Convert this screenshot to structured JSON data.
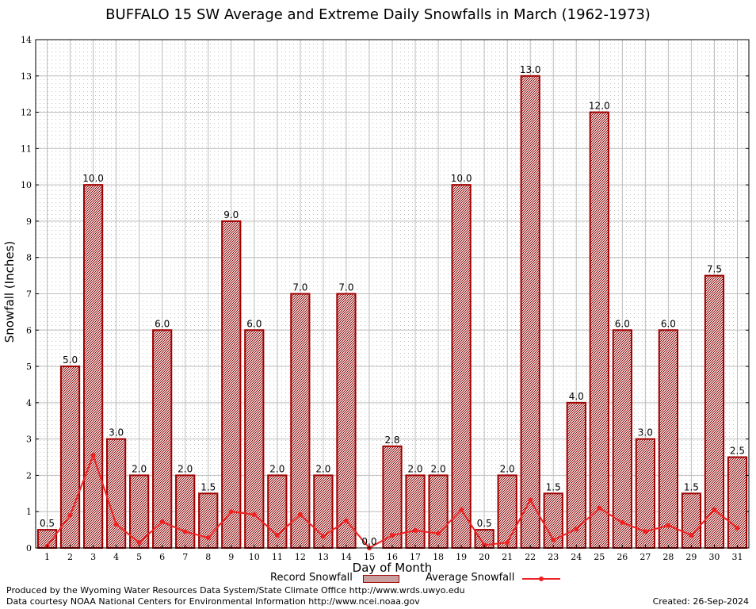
{
  "chart_data": {
    "type": "bar",
    "title": "BUFFALO 15 SW Average and Extreme Daily Snowfalls in March (1962-1973)",
    "xlabel": "Day of Month",
    "ylabel": "Snowfall (Inches)",
    "ylim": [
      0,
      14
    ],
    "yticks": [
      "0",
      "1",
      "2",
      "3",
      "4",
      "5",
      "6",
      "7",
      "8",
      "9",
      "10",
      "11",
      "12",
      "13",
      "14"
    ],
    "grid": true,
    "legend_position": "bottom",
    "categories": [
      "1",
      "2",
      "3",
      "4",
      "5",
      "6",
      "7",
      "8",
      "9",
      "10",
      "11",
      "12",
      "13",
      "14",
      "15",
      "16",
      "17",
      "18",
      "19",
      "20",
      "21",
      "22",
      "23",
      "24",
      "25",
      "26",
      "27",
      "28",
      "29",
      "30",
      "31"
    ],
    "series": [
      {
        "name": "Record Snowfall",
        "kind": "bar",
        "color": "#a00000",
        "values": [
          0.5,
          5.0,
          10.0,
          3.0,
          2.0,
          6.0,
          2.0,
          1.5,
          9.0,
          6.0,
          2.0,
          7.0,
          2.0,
          7.0,
          0.0,
          2.8,
          2.0,
          2.0,
          10.0,
          0.5,
          2.0,
          13.0,
          1.5,
          4.0,
          12.0,
          6.0,
          3.0,
          6.0,
          1.5,
          7.5,
          2.5
        ],
        "labels": [
          "0.5",
          "5.0",
          "10.0",
          "3.0",
          "2.0",
          "6.0",
          "2.0",
          "1.5",
          "9.0",
          "6.0",
          "2.0",
          "7.0",
          "2.0",
          "7.0",
          "0.0",
          "2.8",
          "2.0",
          "2.0",
          "10.0",
          "0.5",
          "2.0",
          "13.0",
          "1.5",
          "4.0",
          "12.0",
          "6.0",
          "3.0",
          "6.0",
          "1.5",
          "7.5",
          "2.5"
        ]
      },
      {
        "name": "Average Snowfall",
        "kind": "line",
        "color": "#ee2222",
        "values": [
          0.05,
          0.9,
          2.55,
          0.65,
          0.15,
          0.72,
          0.45,
          0.28,
          1.0,
          0.92,
          0.35,
          0.92,
          0.32,
          0.75,
          0.0,
          0.35,
          0.48,
          0.4,
          1.05,
          0.08,
          0.15,
          1.32,
          0.22,
          0.52,
          1.1,
          0.7,
          0.45,
          0.62,
          0.35,
          1.05,
          0.55
        ]
      }
    ]
  },
  "footer": {
    "produced": "Produced by the Wyoming Water Resources Data System/State Climate Office http://www.wrds.uwyo.edu",
    "courtesy": "Data courtesy NOAA National Centers for Environmental Information http://www.ncei.noaa.gov",
    "created": "Created:  26-Sep-2024"
  }
}
